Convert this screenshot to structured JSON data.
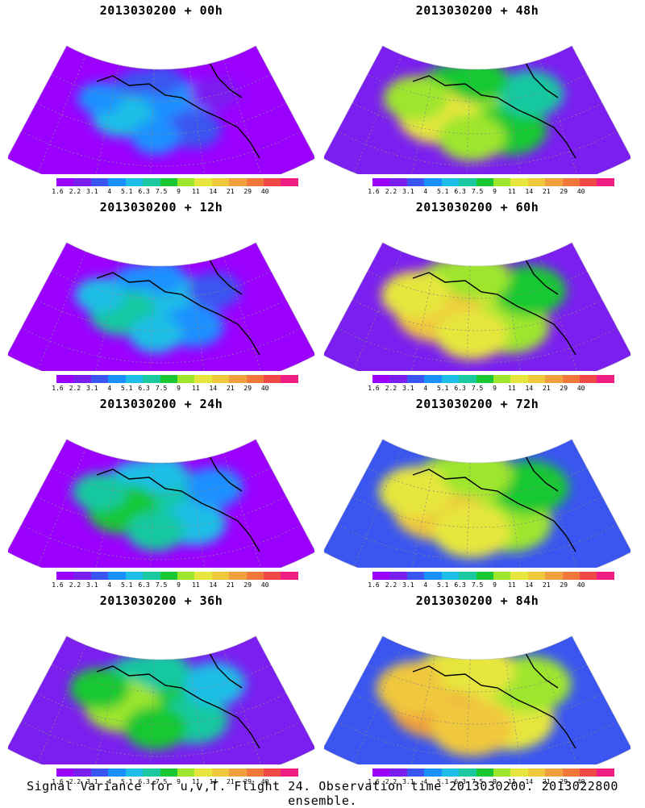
{
  "panels": [
    {
      "title": "2013030200 + 00h",
      "level": 0
    },
    {
      "title": "2013030200 + 48h",
      "level": 4
    },
    {
      "title": "2013030200 + 12h",
      "level": 1
    },
    {
      "title": "2013030200 + 60h",
      "level": 5
    },
    {
      "title": "2013030200 + 24h",
      "level": 2
    },
    {
      "title": "2013030200 + 72h",
      "level": 6
    },
    {
      "title": "2013030200 + 36h",
      "level": 3
    },
    {
      "title": "2013030200 + 84h",
      "level": 7
    }
  ],
  "colorbar": {
    "colors": [
      "#9b00ff",
      "#7a1ff0",
      "#3a55f0",
      "#1a90ff",
      "#1abee6",
      "#19c8a0",
      "#19c832",
      "#9ee62d",
      "#e6e63c",
      "#f0c83c",
      "#f0a03c",
      "#f07838",
      "#f04646",
      "#f01e82"
    ],
    "labels": [
      "1.6",
      "2.2",
      "3.1",
      "4",
      "5.1",
      "6.3",
      "7.5",
      "9",
      "11",
      "14",
      "21",
      "29",
      "40"
    ]
  },
  "footer": "Signal Variance for u,v,T. Flight 24. Observation time 2013030200. 2013022800 ensemble."
}
